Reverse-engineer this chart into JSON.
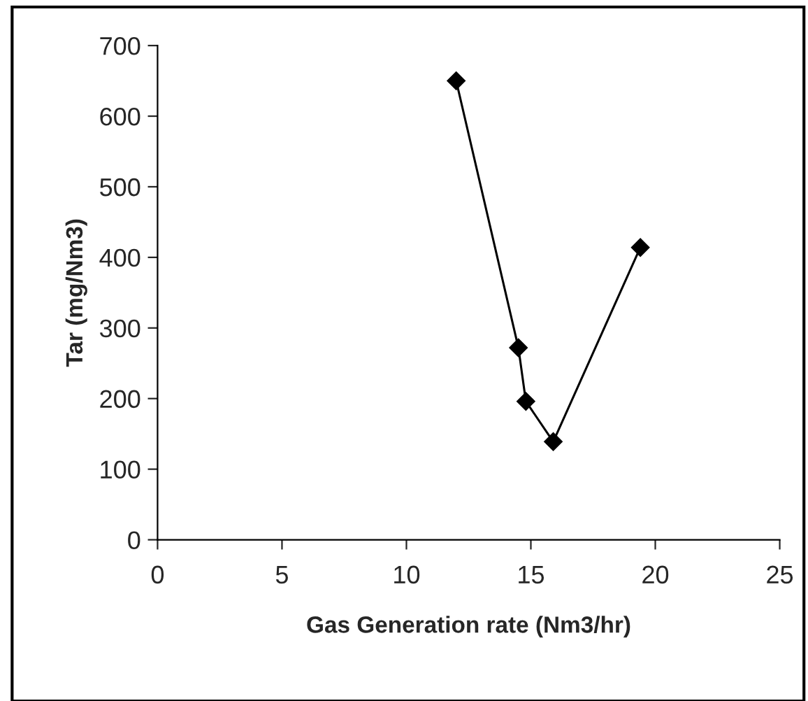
{
  "chart_data": {
    "type": "line",
    "xlabel": "Gas Generation rate (Nm3/hr)",
    "ylabel": "Tar (mg/Nm3)",
    "x": [
      12,
      14.5,
      14.8,
      15.9,
      19.4
    ],
    "series": [
      {
        "color": "#000000",
        "values": [
          650,
          272,
          196,
          139,
          414
        ]
      }
    ],
    "xlim": [
      0,
      25
    ],
    "xticks": [
      0,
      5,
      10,
      15,
      20,
      25
    ],
    "ylim": [
      0,
      700
    ],
    "yticks": [
      0,
      100,
      200,
      300,
      400,
      500,
      600,
      700
    ],
    "marker": "diamond",
    "line_style": "solid",
    "grid": false,
    "legend": false
  }
}
